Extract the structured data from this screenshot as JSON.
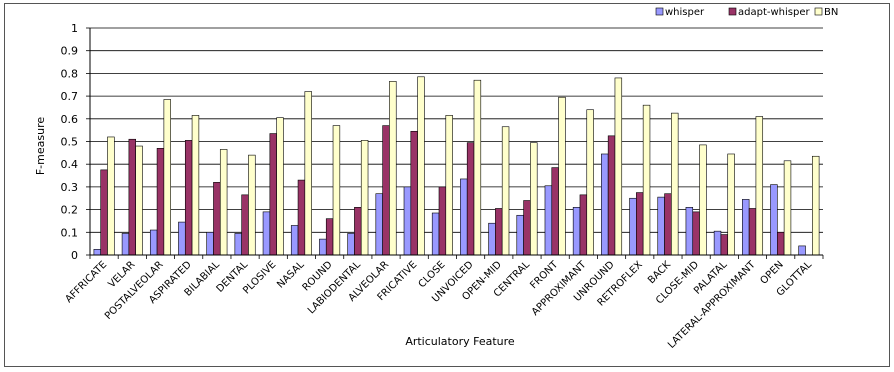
{
  "chart_data": {
    "type": "bar",
    "xlabel": "Articulatory Feature",
    "ylabel": "F-measure",
    "ylim": [
      0,
      1
    ],
    "yticks": [
      "0",
      "0.1",
      "0.2",
      "0.3",
      "0.4",
      "0.5",
      "0.6",
      "0.7",
      "0.8",
      "0.9",
      "1"
    ],
    "grid": true,
    "legend_position": "top-right",
    "categories": [
      "AFFRICATE",
      "VELAR",
      "POSTALVEOLAR",
      "ASPIRATED",
      "BILABIAL",
      "DENTAL",
      "PLOSIVE",
      "NASAL",
      "ROUND",
      "LABIODENTAL",
      "ALVEOLAR",
      "FRICATIVE",
      "CLOSE",
      "UNVOICED",
      "OPEN-MID",
      "CENTRAL",
      "FRONT",
      "APPROXIMANT",
      "UNROUND",
      "RETROFLEX",
      "BACK",
      "CLOSE-MID",
      "PALATAL",
      "LATERAL-APPROXIMANT",
      "OPEN",
      "GLOTTAL"
    ],
    "series": [
      {
        "name": "whisper",
        "color": "#9999ff",
        "values": [
          0.025,
          0.095,
          0.11,
          0.145,
          0.1,
          0.095,
          0.19,
          0.13,
          0.07,
          0.095,
          0.27,
          0.3,
          0.185,
          0.335,
          0.14,
          0.175,
          0.305,
          0.21,
          0.445,
          0.25,
          0.255,
          0.21,
          0.105,
          0.245,
          0.31,
          0.04
        ]
      },
      {
        "name": "adapt-whisper",
        "color": "#993366",
        "values": [
          0.375,
          0.51,
          0.47,
          0.505,
          0.32,
          0.265,
          0.535,
          0.33,
          0.16,
          0.21,
          0.57,
          0.545,
          0.3,
          0.495,
          0.205,
          0.24,
          0.385,
          0.265,
          0.525,
          0.275,
          0.27,
          0.19,
          0.09,
          0.205,
          0.1,
          0
        ]
      },
      {
        "name": "BN",
        "color": "#ffffcc",
        "values": [
          0.52,
          0.48,
          0.685,
          0.615,
          0.465,
          0.44,
          0.605,
          0.72,
          0.57,
          0.505,
          0.765,
          0.785,
          0.615,
          0.77,
          0.565,
          0.495,
          0.695,
          0.64,
          0.78,
          0.66,
          0.625,
          0.485,
          0.445,
          0.61,
          0.415,
          0.435
        ]
      }
    ]
  }
}
